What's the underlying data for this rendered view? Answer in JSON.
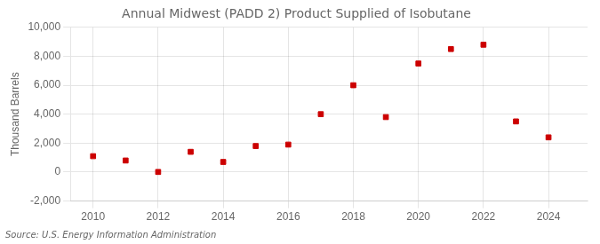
{
  "chart_data": {
    "type": "scatter",
    "title": "Annual Midwest (PADD 2) Product Supplied of Isobutane",
    "ylabel": "Thousand Barrels",
    "annotation": "Source: U.S. Energy Information Administration",
    "x": [
      2010,
      2011,
      2012,
      2013,
      2014,
      2015,
      2016,
      2017,
      2018,
      2019,
      2020,
      2021,
      2022,
      2023,
      2024
    ],
    "values": [
      1100,
      800,
      10,
      1400,
      700,
      1800,
      1900,
      4000,
      6000,
      3800,
      7500,
      8500,
      8800,
      3500,
      2400
    ],
    "color": "#cc0000",
    "marker": "square",
    "grid": true,
    "xlim": [
      2009.3,
      2025.2
    ],
    "xticks": [
      2010,
      2012,
      2014,
      2016,
      2018,
      2020,
      2022,
      2024
    ],
    "ylim": [
      -2000,
      10000
    ],
    "yticks": [
      {
        "value": -2000,
        "label": "-2,000"
      },
      0,
      {
        "value": 2000,
        "label": "2,000"
      },
      {
        "value": 4000,
        "label": "4,000"
      },
      {
        "value": 6000,
        "label": "6,000"
      },
      {
        "value": 8000,
        "label": "8,000"
      },
      {
        "value": 10000,
        "label": "10,000"
      }
    ]
  }
}
